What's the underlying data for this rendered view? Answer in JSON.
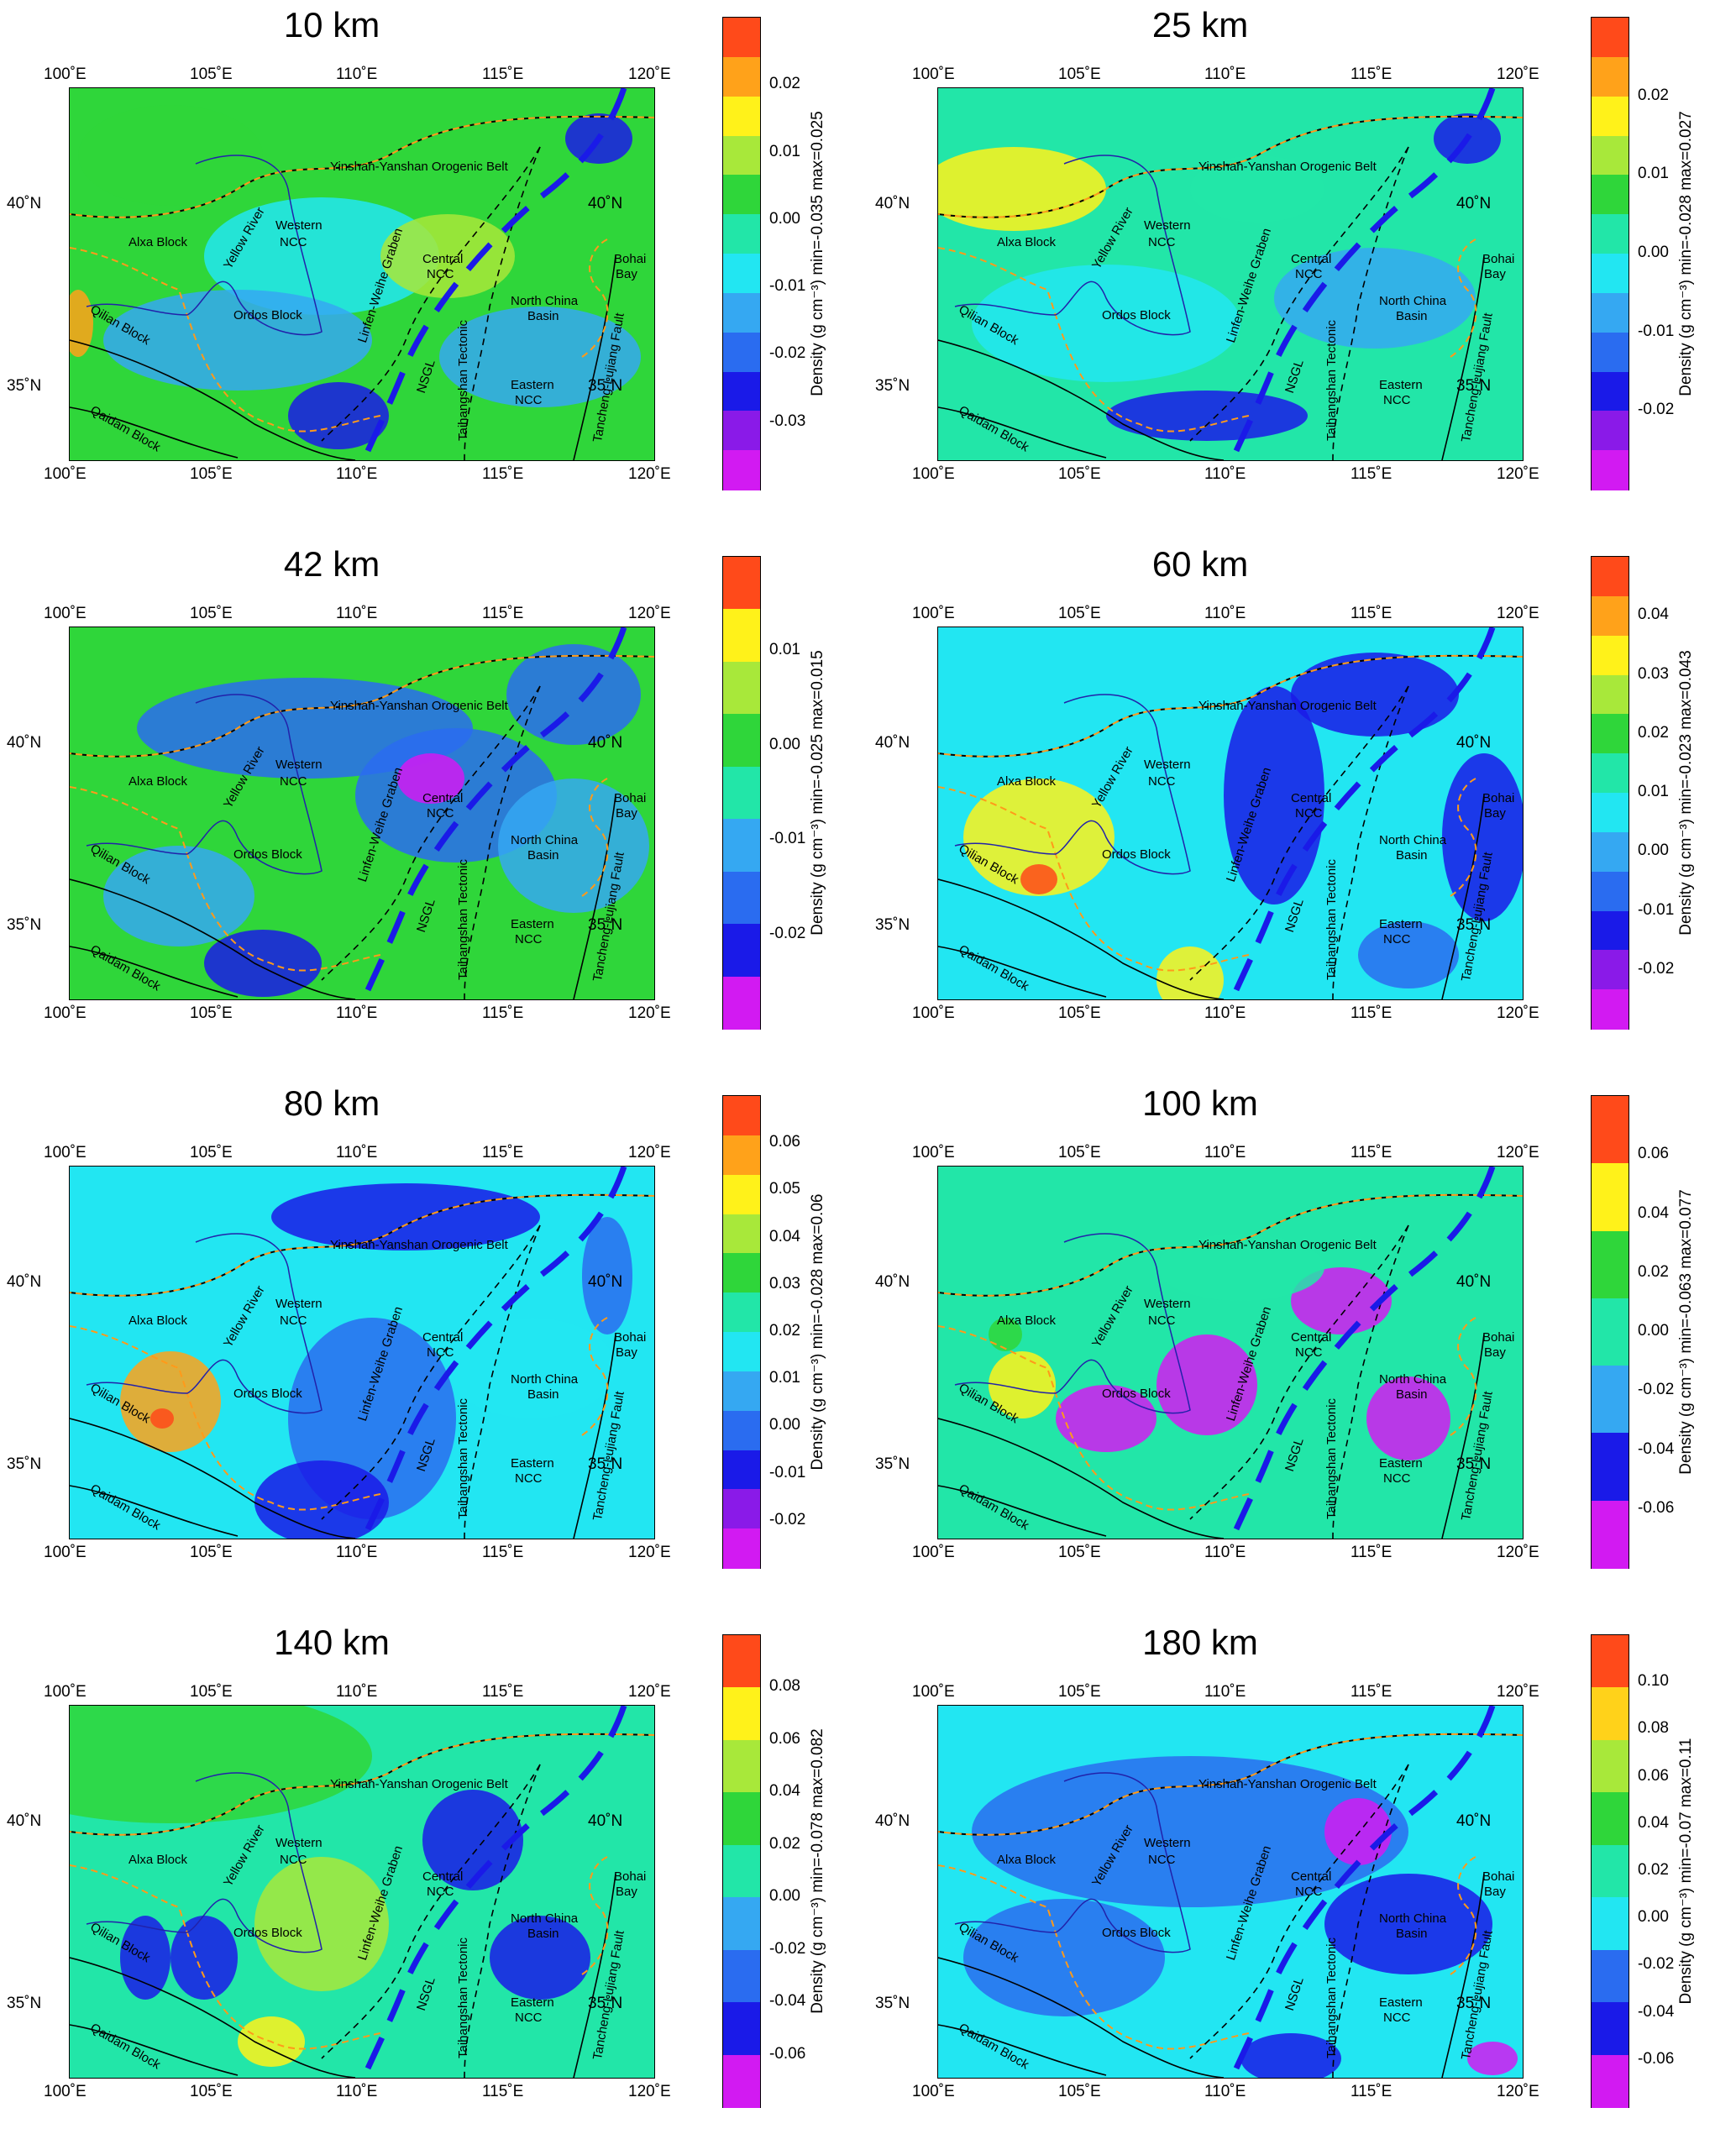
{
  "lon_ticks": [
    "100˚E",
    "105˚E",
    "110˚E",
    "115˚E",
    "120˚E"
  ],
  "lat_ticks": [
    "40˚N",
    "35˚N"
  ],
  "colorbar_unit": "Density (g cm⁻³)",
  "geo_labels": {
    "yinshan": "Yinshan-Yanshan Orogenic Belt",
    "alxa": "Alxa Block",
    "western": "Western",
    "ncc": "NCC",
    "central": "Central",
    "ordos": "Ordos Block",
    "qilian": "Qilian Block",
    "qaidam": "Qaidam Block",
    "yellow_river": "Yellow River",
    "linfen": "Linfen-Weihe Graben",
    "nsgl": "NSGL",
    "taihang": "Taihangshan Tectonic",
    "north_china": "North China",
    "basin": "Basin",
    "eastern": "Eastern",
    "tancheng": "Tancheng-Lujiang Fault",
    "bohai": "Bohai",
    "bay": "Bay"
  },
  "panels": [
    {
      "title": "10 km",
      "range": "min=-0.035 max=0.025",
      "ticks": [
        "0.02",
        "0.01",
        "0.00",
        "-0.01",
        "-0.02",
        "-0.03"
      ],
      "colors": [
        "#ff4a1a",
        "#ffa21a",
        "#fff21a",
        "#a8e83a",
        "#2fd63a",
        "#22e6a8",
        "#22e6f2",
        "#35a8f2",
        "#2a6cf0",
        "#1a1ae8",
        "#8a1ae8",
        "#d21af2"
      ],
      "base": "#2fd63a"
    },
    {
      "title": "25 km",
      "range": "min=-0.028 max=0.027",
      "ticks": [
        "0.02",
        "0.01",
        "0.00",
        "-0.01",
        "-0.02"
      ],
      "colors": [
        "#ff4a1a",
        "#ffa21a",
        "#fff21a",
        "#a8e83a",
        "#2fd63a",
        "#22e6a8",
        "#22e6f2",
        "#35a8f2",
        "#2a6cf0",
        "#1a1ae8",
        "#8a1ae8",
        "#d21af2"
      ],
      "base": "#22e6a8"
    },
    {
      "title": "42 km",
      "range": "min=-0.025 max=0.015",
      "ticks": [
        "0.01",
        "0.00",
        "-0.01",
        "-0.02"
      ],
      "colors": [
        "#ff4a1a",
        "#fff21a",
        "#a8e83a",
        "#2fd63a",
        "#22e6a8",
        "#35a8f2",
        "#2a6cf0",
        "#1a1ae8",
        "#d21af2"
      ],
      "base": "#2fd63a"
    },
    {
      "title": "60 km",
      "range": "min=-0.023 max=0.043",
      "ticks": [
        "0.04",
        "0.03",
        "0.02",
        "0.01",
        "0.00",
        "-0.01",
        "-0.02"
      ],
      "colors": [
        "#ff4a1a",
        "#ffa21a",
        "#fff21a",
        "#a8e83a",
        "#2fd63a",
        "#22e6a8",
        "#22e6f2",
        "#35a8f2",
        "#2a6cf0",
        "#1a1ae8",
        "#8a1ae8",
        "#d21af2"
      ],
      "base": "#22e6f2"
    },
    {
      "title": "80 km",
      "range": "min=-0.028 max=0.06",
      "ticks": [
        "0.06",
        "0.05",
        "0.04",
        "0.03",
        "0.02",
        "0.01",
        "0.00",
        "-0.01",
        "-0.02"
      ],
      "colors": [
        "#ff4a1a",
        "#ffa21a",
        "#fff21a",
        "#a8e83a",
        "#2fd63a",
        "#22e6a8",
        "#22e6f2",
        "#35a8f2",
        "#2a6cf0",
        "#1a1ae8",
        "#8a1ae8",
        "#d21af2"
      ],
      "base": "#22e6f2"
    },
    {
      "title": "100 km",
      "range": "min=-0.063 max=0.077",
      "ticks": [
        "0.06",
        "0.04",
        "0.02",
        "0.00",
        "-0.02",
        "-0.04",
        "-0.06"
      ],
      "colors": [
        "#ff4a1a",
        "#fff21a",
        "#2fd63a",
        "#22e6a8",
        "#35a8f2",
        "#1a1ae8",
        "#d21af2"
      ],
      "base": "#22e6a8"
    },
    {
      "title": "140 km",
      "range": "min=-0.078 max=0.082",
      "ticks": [
        "0.08",
        "0.06",
        "0.04",
        "0.02",
        "0.00",
        "-0.02",
        "-0.04",
        "-0.06"
      ],
      "colors": [
        "#ff4a1a",
        "#fff21a",
        "#a8e83a",
        "#2fd63a",
        "#22e6a8",
        "#35a8f2",
        "#2a6cf0",
        "#1a1ae8",
        "#d21af2"
      ],
      "base": "#22e6a8"
    },
    {
      "title": "180 km",
      "range": "min=-0.07 max=0.11",
      "ticks": [
        "0.10",
        "0.08",
        "0.06",
        "0.04",
        "0.02",
        "0.00",
        "-0.02",
        "-0.04",
        "-0.06"
      ],
      "colors": [
        "#ff4a1a",
        "#ffd21a",
        "#a8e83a",
        "#2fd63a",
        "#22e6a8",
        "#22e6f2",
        "#2a6cf0",
        "#1a1ae8",
        "#d21af2"
      ],
      "base": "#22e6f2"
    }
  ]
}
